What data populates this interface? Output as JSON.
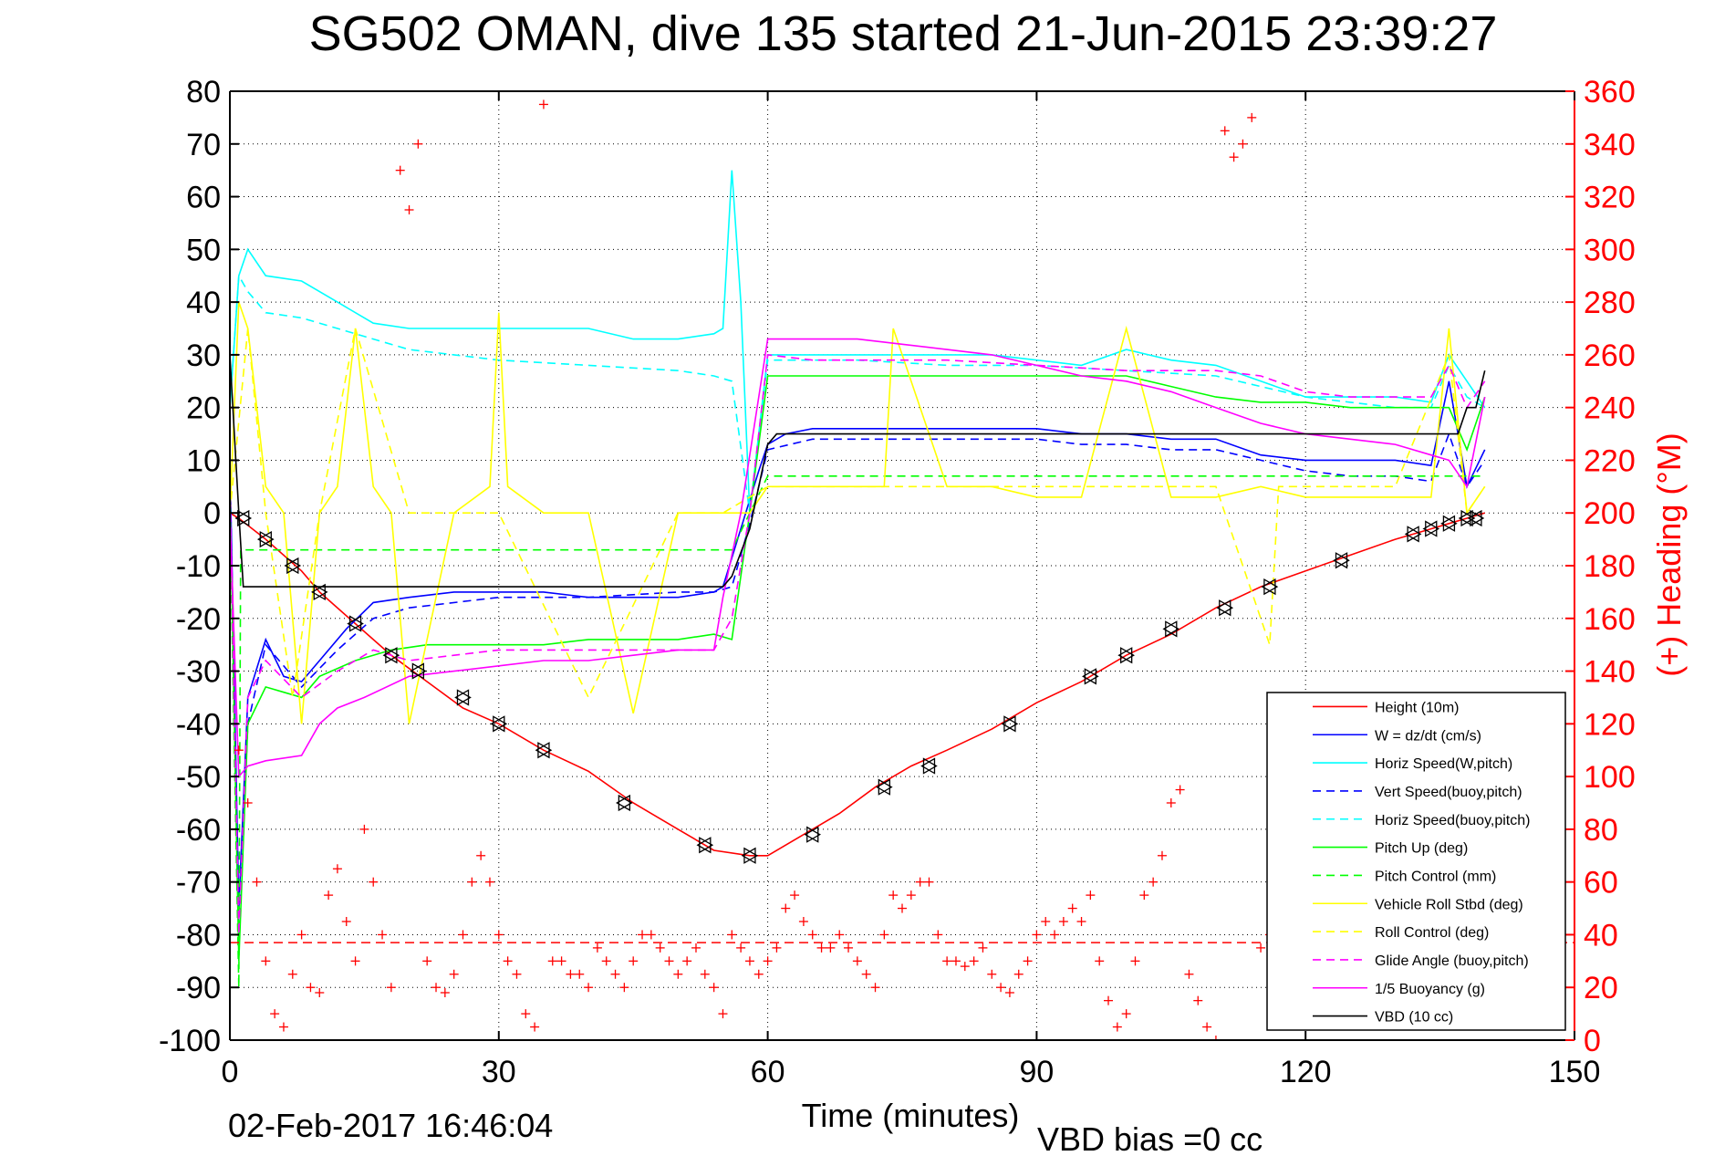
{
  "chart_data": {
    "type": "line",
    "title": "SG502 OMAN, dive 135 started 21-Jun-2015 23:39:27",
    "xlabel": "Time (minutes)",
    "ylabel": "",
    "y2label": "(+) Heading (°M)",
    "xlim": [
      0,
      150
    ],
    "ylim": [
      -100,
      80
    ],
    "y2lim": [
      0,
      360
    ],
    "xticks": [
      0,
      30,
      60,
      90,
      120,
      150
    ],
    "yticks": [
      -100,
      -90,
      -80,
      -70,
      -60,
      -50,
      -40,
      -30,
      -20,
      -10,
      0,
      10,
      20,
      30,
      40,
      50,
      60,
      70,
      80
    ],
    "y2ticks": [
      0,
      20,
      40,
      60,
      80,
      100,
      120,
      140,
      160,
      180,
      200,
      220,
      240,
      260,
      280,
      300,
      320,
      340,
      360
    ],
    "grid": true,
    "legend_position": "bottom-right",
    "footer_left": "02-Feb-2017 16:46:04",
    "footer_right": "VBD bias =0 cc",
    "colors": {
      "red": "#ff0000",
      "blue": "#0000ff",
      "cyan": "#00ffff",
      "green": "#00ff00",
      "yellow": "#ffff00",
      "magenta": "#ff00ff",
      "black": "#000000"
    },
    "series": [
      {
        "name": "Height (10m)",
        "color": "#ff0000",
        "style": "solid",
        "x": [
          0,
          1,
          4,
          8,
          10,
          14,
          18,
          22,
          26,
          30,
          35,
          40,
          45,
          50,
          54,
          58,
          60,
          64,
          68,
          72,
          76,
          80,
          85,
          90,
          95,
          100,
          105,
          110,
          115,
          120,
          125,
          130,
          134,
          136,
          138,
          140
        ],
        "y": [
          0,
          -1,
          -5,
          -11,
          -15,
          -21,
          -27,
          -32,
          -37,
          -40,
          -45,
          -49,
          -55,
          -60,
          -64,
          -65,
          -65,
          -61,
          -57,
          -52,
          -48,
          -45,
          -41,
          -36,
          -32,
          -27,
          -23,
          -18,
          -14,
          -11,
          -8,
          -5,
          -3,
          -2,
          -1,
          0
        ]
      },
      {
        "name": "W = dz/dt (cm/s)",
        "color": "#0000ff",
        "style": "solid",
        "x": [
          0,
          1,
          2,
          4,
          6,
          8,
          10,
          13,
          16,
          20,
          25,
          30,
          35,
          40,
          45,
          50,
          54,
          55,
          57,
          59,
          60,
          62,
          65,
          70,
          75,
          80,
          85,
          90,
          95,
          100,
          105,
          110,
          115,
          120,
          125,
          130,
          134,
          136,
          138,
          140
        ],
        "y": [
          10,
          -75,
          -35,
          -24,
          -31,
          -32,
          -28,
          -22,
          -17,
          -16,
          -15,
          -15,
          -15,
          -16,
          -16,
          -16,
          -15,
          -14,
          -3,
          8,
          13,
          15,
          16,
          16,
          16,
          16,
          16,
          16,
          15,
          15,
          14,
          14,
          11,
          10,
          10,
          10,
          9,
          25,
          5,
          12
        ]
      },
      {
        "name": "Horiz Speed(W,pitch)",
        "color": "#00ffff",
        "style": "solid",
        "x": [
          0,
          1,
          2,
          4,
          8,
          12,
          16,
          20,
          25,
          30,
          35,
          40,
          45,
          50,
          54,
          55,
          56,
          57,
          58,
          60,
          64,
          70,
          75,
          80,
          85,
          90,
          95,
          100,
          105,
          110,
          115,
          120,
          125,
          130,
          134,
          136,
          138,
          140
        ],
        "y": [
          20,
          45,
          50,
          45,
          44,
          40,
          36,
          35,
          35,
          35,
          35,
          35,
          33,
          33,
          34,
          35,
          65,
          40,
          0,
          30,
          30,
          30,
          30,
          30,
          30,
          29,
          28,
          31,
          29,
          28,
          25,
          22,
          22,
          22,
          21,
          30,
          25,
          20
        ]
      },
      {
        "name": "Vert Speed(buoy,pitch)",
        "color": "#0000ff",
        "style": "dashed",
        "x": [
          0,
          1,
          2,
          4,
          8,
          12,
          16,
          20,
          30,
          40,
          50,
          54,
          56,
          58,
          60,
          65,
          70,
          80,
          90,
          95,
          100,
          105,
          110,
          115,
          120,
          125,
          130,
          134,
          136,
          138,
          140
        ],
        "y": [
          10,
          -80,
          -40,
          -25,
          -33,
          -26,
          -20,
          -18,
          -16,
          -16,
          -15,
          -15,
          -14,
          -2,
          12,
          14,
          14,
          14,
          14,
          13,
          13,
          12,
          12,
          10,
          8,
          7,
          7,
          6,
          15,
          5,
          10
        ]
      },
      {
        "name": "Horiz Speed(buoy,pitch)",
        "color": "#00ffff",
        "style": "dashed",
        "x": [
          0,
          1,
          2,
          4,
          8,
          12,
          16,
          20,
          25,
          30,
          40,
          50,
          54,
          56,
          58,
          60,
          65,
          70,
          80,
          90,
          100,
          110,
          115,
          120,
          125,
          130,
          134,
          136,
          138,
          140
        ],
        "y": [
          20,
          45,
          42,
          38,
          37,
          35,
          33,
          31,
          30,
          29,
          28,
          27,
          26,
          25,
          0,
          29,
          29,
          29,
          28,
          28,
          27,
          26,
          24,
          22,
          21,
          20,
          20,
          28,
          22,
          20
        ]
      },
      {
        "name": "Pitch Up (deg)",
        "color": "#00ff00",
        "style": "solid",
        "x": [
          0,
          1,
          2,
          4,
          6,
          8,
          10,
          14,
          18,
          22,
          26,
          30,
          35,
          40,
          45,
          50,
          54,
          56,
          58,
          60,
          65,
          70,
          80,
          90,
          100,
          105,
          110,
          115,
          120,
          125,
          130,
          134,
          136,
          138,
          140
        ],
        "y": [
          5,
          -85,
          -40,
          -33,
          -34,
          -35,
          -31,
          -28,
          -26,
          -25,
          -25,
          -25,
          -25,
          -24,
          -24,
          -24,
          -23,
          -24,
          0,
          26,
          26,
          26,
          26,
          26,
          26,
          24,
          22,
          21,
          21,
          20,
          20,
          20,
          20,
          12,
          22
        ]
      },
      {
        "name": "Pitch Control (mm)",
        "color": "#00ff00",
        "style": "dashed",
        "x": [
          0,
          1,
          1.2,
          2,
          55,
          56,
          60,
          61,
          140
        ],
        "y": [
          0,
          -90,
          -7,
          -7,
          -7,
          -7,
          7,
          7,
          7
        ]
      },
      {
        "name": "Vehicle Roll Stbd (deg)",
        "color": "#ffff00",
        "style": "solid",
        "x": [
          0,
          1,
          2,
          3,
          4,
          6,
          8,
          10,
          12,
          14,
          16,
          18,
          20,
          25,
          29,
          30,
          31,
          35,
          40,
          45,
          50,
          54,
          56,
          58,
          60,
          65,
          70,
          73,
          74,
          80,
          85,
          90,
          95,
          100,
          105,
          110,
          115,
          120,
          125,
          130,
          134,
          136,
          138,
          140
        ],
        "y": [
          0,
          40,
          35,
          20,
          5,
          0,
          -40,
          0,
          5,
          35,
          5,
          0,
          -40,
          0,
          5,
          38,
          5,
          0,
          0,
          -38,
          0,
          0,
          0,
          0,
          5,
          5,
          5,
          5,
          35,
          5,
          5,
          3,
          3,
          35,
          3,
          3,
          5,
          3,
          3,
          3,
          3,
          35,
          0,
          5
        ]
      },
      {
        "name": "Roll Control (deg)",
        "color": "#ffff00",
        "style": "dashed",
        "x": [
          0,
          2,
          4,
          7,
          10,
          14,
          20,
          30,
          40,
          50,
          55,
          60,
          70,
          80,
          90,
          100,
          110,
          116,
          117,
          120,
          130,
          136,
          138,
          140
        ],
        "y": [
          0,
          35,
          0,
          -35,
          0,
          35,
          0,
          0,
          -35,
          0,
          0,
          5,
          5,
          5,
          5,
          5,
          5,
          -25,
          5,
          5,
          5,
          30,
          0,
          5
        ]
      },
      {
        "name": "Glide Angle (buoy,pitch)",
        "color": "#ff00ff",
        "style": "dashed",
        "x": [
          0,
          1,
          2,
          4,
          8,
          12,
          16,
          20,
          25,
          30,
          40,
          50,
          54,
          56,
          58,
          60,
          65,
          70,
          80,
          90,
          100,
          110,
          115,
          120,
          125,
          130,
          134,
          136,
          138,
          140
        ],
        "y": [
          5,
          -80,
          -35,
          -28,
          -35,
          -30,
          -26,
          -28,
          -27,
          -26,
          -26,
          -26,
          -26,
          -20,
          0,
          30,
          29,
          29,
          29,
          28,
          27,
          27,
          26,
          23,
          22,
          22,
          22,
          28,
          20,
          25
        ]
      },
      {
        "name": "1/5 Buoyancy (g)",
        "color": "#ff00ff",
        "style": "solid",
        "x": [
          0,
          1,
          2,
          4,
          8,
          10,
          12,
          15,
          20,
          25,
          30,
          35,
          40,
          45,
          50,
          54,
          55,
          57,
          60,
          65,
          70,
          75,
          80,
          85,
          90,
          95,
          100,
          105,
          110,
          115,
          120,
          125,
          130,
          134,
          136,
          138,
          140
        ],
        "y": [
          0,
          -50,
          -48,
          -47,
          -46,
          -40,
          -37,
          -35,
          -31,
          -30,
          -29,
          -28,
          -28,
          -27,
          -26,
          -26,
          -16,
          0,
          33,
          33,
          33,
          32,
          31,
          30,
          28,
          26,
          25,
          23,
          20,
          17,
          15,
          14,
          13,
          11,
          10,
          5,
          22
        ]
      },
      {
        "name": "VBD (10 cc)",
        "color": "#000000",
        "style": "solid",
        "x": [
          0,
          1,
          1.5,
          2,
          55,
          56,
          58,
          60,
          61,
          137,
          138,
          139,
          140
        ],
        "y": [
          30,
          0,
          -14,
          -14,
          -14,
          -12,
          -3,
          13,
          15,
          15,
          20,
          20,
          27
        ]
      }
    ],
    "heading": {
      "name": "(+) Heading (°M)",
      "color": "#ff0000",
      "marker": "+",
      "axis": "right",
      "mean": 37,
      "x": [
        1,
        2,
        3,
        4,
        5,
        6,
        7,
        8,
        9,
        10,
        11,
        12,
        13,
        14,
        15,
        16,
        17,
        18,
        19,
        20,
        21,
        22,
        23,
        24,
        25,
        26,
        27,
        28,
        29,
        30,
        31,
        32,
        33,
        34,
        35,
        36,
        37,
        38,
        39,
        40,
        41,
        42,
        43,
        44,
        45,
        46,
        47,
        48,
        49,
        50,
        51,
        52,
        53,
        54,
        55,
        56,
        57,
        58,
        59,
        60,
        61,
        62,
        63,
        64,
        65,
        66,
        67,
        68,
        69,
        70,
        71,
        72,
        73,
        74,
        75,
        76,
        77,
        78,
        79,
        80,
        81,
        82,
        83,
        84,
        85,
        86,
        87,
        88,
        89,
        90,
        91,
        92,
        93,
        94,
        95,
        96,
        97,
        98,
        99,
        100,
        101,
        102,
        103,
        104,
        105,
        106,
        107,
        108,
        109,
        110,
        111,
        112,
        113,
        114,
        115,
        116,
        117,
        118,
        119,
        120,
        121,
        122,
        123,
        124,
        125,
        126,
        127,
        128,
        129,
        130,
        131,
        132,
        133,
        134,
        135,
        136,
        137,
        138,
        139
      ],
      "y": [
        110,
        90,
        60,
        30,
        10,
        5,
        25,
        40,
        20,
        18,
        55,
        65,
        45,
        30,
        80,
        60,
        40,
        20,
        330,
        315,
        340,
        30,
        20,
        18,
        25,
        40,
        60,
        70,
        60,
        40,
        30,
        25,
        10,
        5,
        355,
        30,
        30,
        25,
        25,
        20,
        35,
        30,
        25,
        20,
        30,
        40,
        40,
        35,
        30,
        25,
        30,
        35,
        25,
        20,
        10,
        40,
        35,
        30,
        25,
        30,
        35,
        50,
        55,
        45,
        40,
        35,
        35,
        40,
        35,
        30,
        25,
        20,
        40,
        55,
        50,
        55,
        60,
        60,
        40,
        30,
        30,
        28,
        30,
        35,
        25,
        20,
        18,
        25,
        30,
        40,
        45,
        40,
        45,
        50,
        45,
        55,
        30,
        15,
        5,
        10,
        30,
        55,
        60,
        70,
        90,
        95,
        25,
        15,
        5,
        0,
        345,
        335,
        340,
        350,
        35,
        40,
        30,
        20,
        25,
        15,
        30,
        38,
        45,
        40,
        38,
        40,
        42,
        38,
        35,
        40,
        38,
        37,
        40,
        36,
        38,
        40,
        37,
        36,
        38
      ]
    },
    "markers": {
      "name": "Height (10m) markers",
      "x": [
        1.5,
        4,
        7,
        10,
        14,
        18,
        21,
        26,
        30,
        35,
        44,
        53,
        58,
        65,
        73,
        78,
        87,
        96,
        100,
        105,
        111,
        116,
        124,
        132,
        134,
        136,
        138,
        139
      ],
      "y": [
        -1,
        -5,
        -10,
        -15,
        -21,
        -27,
        -30,
        -35,
        -40,
        -45,
        -55,
        -63,
        -65,
        -61,
        -52,
        -48,
        -40,
        -31,
        -27,
        -22,
        -18,
        -14,
        -9,
        -4,
        -3,
        -2,
        -1,
        -1
      ]
    }
  }
}
